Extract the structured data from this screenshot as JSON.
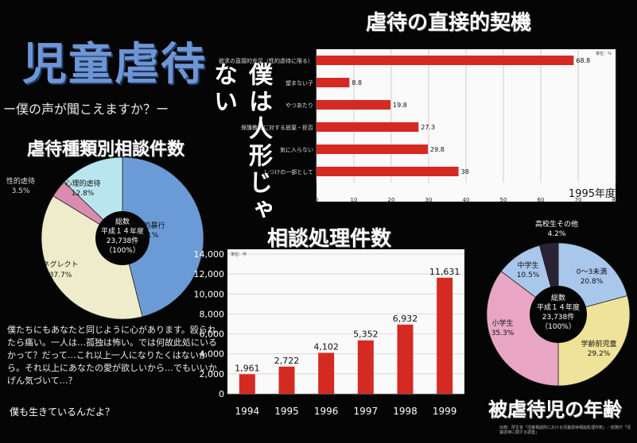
{
  "poster": {
    "title": "児童虐待",
    "subtitle": "ー僕の声が聞こえますか？ー",
    "vertical_slogan": "僕は人形じゃない",
    "poem": "僕たちにもあなたと同じように心があります。殴られたら痛い。一人は…孤独は怖い。では何故此処にいるかって？だって…これ以上一人になりたくはないから。それ以上にあなたの愛が欲しいから…でもいいかげん気づいて…？",
    "footer": "僕も生きているんだよ？"
  },
  "pie_types": {
    "heading": "虐待種類別相談件数",
    "center": [
      "総数",
      "平成１４年度",
      "23,738件",
      "（100%）"
    ],
    "colors": [
      "#6b9bd6",
      "#efeccb",
      "#d98bb0",
      "#b9e6ee"
    ]
  },
  "bar_causes": {
    "heading": "虐待の直接的契機",
    "unit_label": "単位：％",
    "year_label": "1995年度",
    "bar_color": "#d42a22"
  },
  "column_cases": {
    "heading": "相談処理件数",
    "unit_label": "単位：件",
    "bar_color": "#d42a22"
  },
  "pie_age": {
    "heading": "被虐待児の年齢",
    "center": [
      "総数",
      "平成１４年度",
      "23,738件",
      "（100%）"
    ],
    "colors": [
      "#a9c7eb",
      "#efe39a",
      "#e8a6c4",
      "#a9c7eb",
      "#2b2233"
    ]
  },
  "credit": "出典：厚生省「児童相談所における児童虐待相談処理件数」／総務庁「児童虐待に関する調査」",
  "chart_data": [
    {
      "type": "pie",
      "title": "虐待種類別相談件数",
      "labels": [
        "身体的暴行",
        "ネグレクト",
        "性的虐待",
        "心理的虐待"
      ],
      "values": [
        46.1,
        37.7,
        3.5,
        12.8
      ],
      "value_labels": [
        "46.1%",
        "37.7%",
        "3.5%",
        "12.8%"
      ]
    },
    {
      "type": "bar",
      "title": "虐待の直接的契機",
      "categories": [
        "欲求の直接的充足（性的虐待に限る）",
        "望まない子",
        "やつあたり",
        "保護教育に対する放棄・拒否",
        "気に入らない",
        "しつけの一部として"
      ],
      "values": [
        68.8,
        8.8,
        19.8,
        27.3,
        29.8,
        38
      ],
      "value_labels": [
        "68.8",
        "8.8",
        "19.8",
        "27.3",
        "29.8",
        "38"
      ],
      "xlim": [
        0,
        80
      ],
      "xticks": [
        "0",
        "10",
        "20",
        "30",
        "40",
        "50",
        "60",
        "70",
        "80"
      ],
      "grid": true
    },
    {
      "type": "bar",
      "title": "相談処理件数",
      "categories": [
        "1994",
        "1995",
        "1996",
        "1997",
        "1998",
        "1999"
      ],
      "values": [
        1961,
        2722,
        4102,
        5352,
        6932,
        11631
      ],
      "value_labels": [
        "1,961",
        "2,722",
        "4,102",
        "5,352",
        "6,932",
        "11,631"
      ],
      "ylim": [
        0,
        14000
      ],
      "yticks": [
        "0",
        "2,000",
        "4,000",
        "6,000",
        "8,000",
        "10,000",
        "12,000",
        "14,000"
      ],
      "grid": true
    },
    {
      "type": "pie",
      "title": "被虐待児の年齢",
      "labels": [
        "0～3未満",
        "学齢前児童",
        "小学生",
        "中学生",
        "高校生その他"
      ],
      "values": [
        20.8,
        29.2,
        35.3,
        10.5,
        4.2
      ],
      "value_labels": [
        "20.8%",
        "29.2%",
        "35.3%",
        "10.5%",
        "4.2%"
      ]
    }
  ]
}
